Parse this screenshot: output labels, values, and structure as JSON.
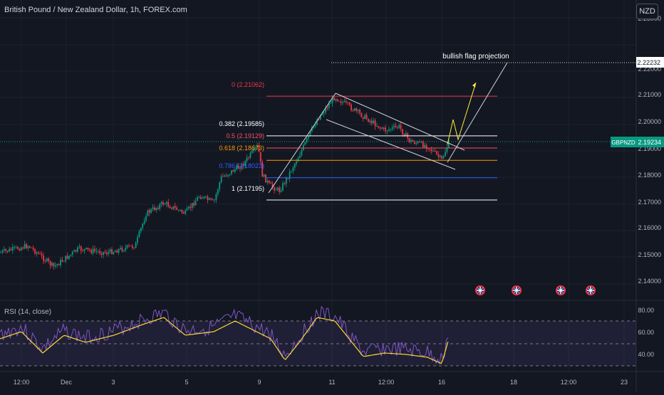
{
  "header": {
    "symbol_title": "British Pound / New Zealand Dollar, 1h, FOREX.com",
    "currency": "NZD"
  },
  "price_axis": {
    "ticks": [
      "2.23000",
      "2.22000",
      "2.21000",
      "2.20000",
      "2.19000",
      "2.18000",
      "2.17000",
      "2.16000",
      "2.15000",
      "2.14000"
    ],
    "projection_value": "2.22232",
    "current_symbol": "GBPNZD",
    "current_value": "2.19234"
  },
  "rsi": {
    "label": "RSI (14, close)",
    "ticks": [
      "80.00",
      "60.00",
      "40.00"
    ]
  },
  "time_axis": {
    "ticks": [
      "12:00",
      "Dec",
      "3",
      "5",
      "9",
      "11",
      "12:00",
      "16",
      "18",
      "12:00",
      "23"
    ]
  },
  "fib_levels": [
    {
      "label": "0 (2.21062)",
      "color": "#f23645",
      "price": 2.21062
    },
    {
      "label": "0.382 (2.19585)",
      "color": "#ffffff",
      "price": 2.19585
    },
    {
      "label": "0.5 (2.19129)",
      "color": "#f7525f",
      "price": 2.19129
    },
    {
      "label": "0.618 (2.18673)",
      "color": "#ff9800",
      "price": 2.18673
    },
    {
      "label": "0.786 (2.18023)",
      "color": "#2962ff",
      "price": 2.18023
    },
    {
      "label": "1 (2.17195)",
      "color": "#ffffff",
      "price": 2.17195
    }
  ],
  "annotation": {
    "projection_label": "bullish flag projection"
  },
  "colors": {
    "background": "#131722",
    "up": "#089981",
    "down": "#f23645",
    "rsi_line": "#7e57c2",
    "rsi_ma": "#fdd835",
    "projection": "#ffeb3b"
  },
  "events": {
    "icon": "uk-flag-icon",
    "count": 4
  }
}
